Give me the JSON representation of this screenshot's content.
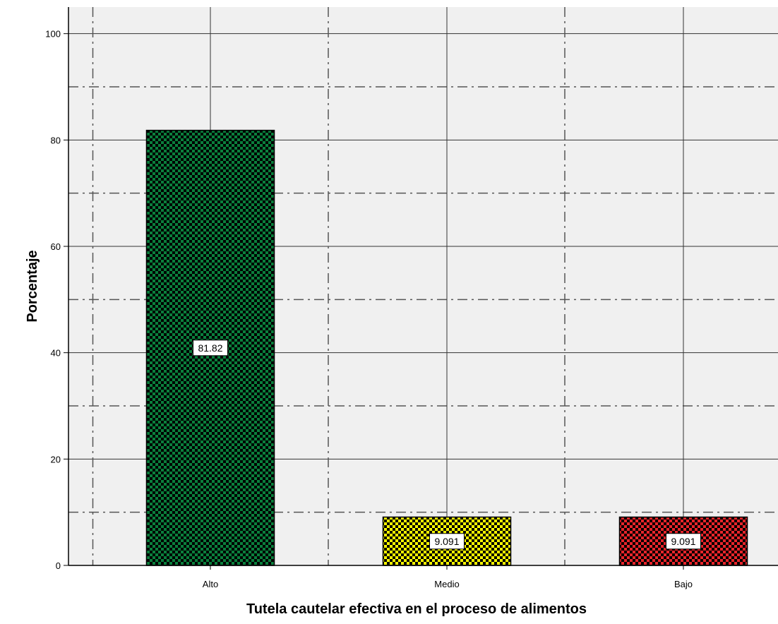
{
  "chart_data": {
    "type": "bar",
    "title": "",
    "xlabel": "Tutela cautelar efectiva en el proceso de alimentos",
    "ylabel": "Porcentaje",
    "categories": [
      "Alto",
      "Medio",
      "Bajo"
    ],
    "values": [
      81.82,
      9.091,
      9.091
    ],
    "data_labels": [
      "81.82",
      "9.091",
      "9.091"
    ],
    "bar_colors": [
      "#0a7f3c",
      "#ffff00",
      "#e8242a"
    ],
    "bar_pattern": "checkerboard",
    "ylim": [
      0,
      105
    ],
    "yticks": [
      0,
      20,
      40,
      60,
      80,
      100
    ],
    "ytick_labels": [
      "0",
      "20",
      "40",
      "60",
      "80",
      "100"
    ],
    "grid": true,
    "plot_background": "#f0f0f0"
  }
}
